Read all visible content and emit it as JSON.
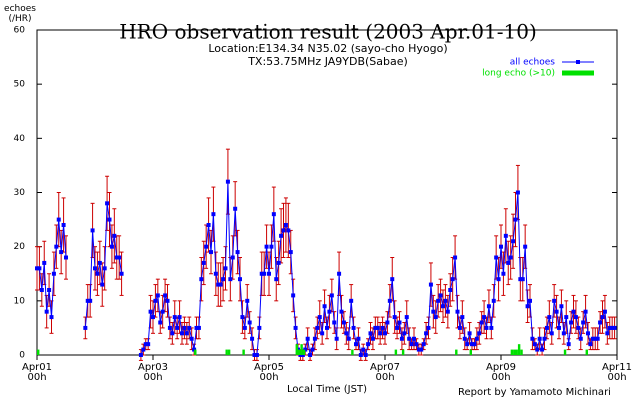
{
  "chart_data": {
    "type": "line",
    "title": "HRO observation result (2003 Apr.01-10)",
    "subtitle": [
      "Location:E134.34 N35.02 (sayo-cho Hyogo)",
      "TX:53.75MHz JA9YDB(Sabae)"
    ],
    "ylabel": "echoes (/HR)",
    "xlabel": "Local Time (JST)",
    "credit": "Report by Yamamoto Michinari",
    "xlim": [
      0,
      240
    ],
    "ylim": [
      0,
      60
    ],
    "xticks": [
      {
        "value": 0,
        "label": "Apr01 00h"
      },
      {
        "value": 48,
        "label": "Apr03 00h"
      },
      {
        "value": 96,
        "label": "Apr05 00h"
      },
      {
        "value": 144,
        "label": "Apr07 00h"
      },
      {
        "value": 192,
        "label": "Apr09 00h"
      },
      {
        "value": 240,
        "label": "Apr11 00h"
      }
    ],
    "yticks": [
      0,
      10,
      20,
      30,
      40,
      50,
      60
    ],
    "legend": "upper right",
    "error_color": "#cc0000",
    "series": [
      {
        "name": "all echoes",
        "color": "#0000ff",
        "x": [
          0,
          1,
          2,
          3,
          4,
          5,
          6,
          7,
          8,
          9,
          10,
          11,
          12,
          13,
          14,
          15,
          16,
          17,
          18,
          19,
          20,
          21,
          22,
          23,
          24,
          25,
          26,
          27,
          28,
          29,
          30,
          31,
          32,
          33,
          34,
          35,
          36,
          37,
          38,
          39,
          40,
          41,
          42,
          43,
          44,
          45,
          46,
          47,
          48,
          49,
          50,
          51,
          52,
          53,
          54,
          55,
          56,
          57,
          58,
          59,
          60,
          61,
          62,
          63,
          64,
          65,
          66,
          67,
          68,
          69,
          70,
          71,
          72,
          73,
          74,
          75,
          76,
          77,
          78,
          79,
          80,
          81,
          82,
          83,
          84,
          85,
          86,
          87,
          88,
          89,
          90,
          91,
          92,
          93,
          94,
          95,
          96,
          97,
          98,
          99,
          100,
          101,
          102,
          103,
          104,
          105,
          106,
          107,
          108,
          109,
          110,
          111,
          112,
          113,
          114,
          115,
          116,
          117,
          118,
          119,
          120,
          121,
          122,
          123,
          124,
          125,
          126,
          127,
          128,
          129,
          130,
          131,
          132,
          133,
          134,
          135,
          136,
          137,
          138,
          139,
          140,
          141,
          142,
          143,
          144,
          145,
          146,
          147,
          148,
          149,
          150,
          151,
          152,
          153,
          154,
          155,
          156,
          157,
          158,
          159,
          160,
          161,
          162,
          163,
          164,
          165,
          166,
          167,
          168,
          169,
          170,
          171,
          172,
          173,
          174,
          175,
          176,
          177,
          178,
          179,
          180,
          181,
          182,
          183,
          184,
          185,
          186,
          187,
          188,
          189,
          190,
          191,
          192,
          193,
          194,
          195,
          196,
          197,
          198,
          199,
          200,
          201,
          202,
          203,
          204,
          205,
          206,
          207,
          208,
          209,
          210,
          211,
          212,
          213,
          214,
          215,
          216,
          217,
          218,
          219,
          220,
          221,
          222,
          223,
          224,
          225,
          226,
          227,
          228,
          229,
          230,
          231,
          232,
          233,
          234,
          235,
          236,
          237,
          238,
          239
        ],
        "values": [
          16,
          16,
          12,
          17,
          8,
          12,
          7,
          15,
          20,
          25,
          19,
          24,
          18,
          null,
          null,
          null,
          null,
          null,
          null,
          null,
          5,
          10,
          10,
          23,
          16,
          15,
          17,
          13,
          16,
          28,
          25,
          20,
          22,
          18,
          18,
          15,
          null,
          null,
          null,
          null,
          null,
          null,
          null,
          0,
          1,
          2,
          2,
          8,
          7,
          10,
          11,
          6,
          8,
          11,
          10,
          5,
          4,
          7,
          5,
          7,
          4,
          5,
          4,
          5,
          3,
          1,
          5,
          5,
          14,
          17,
          20,
          24,
          19,
          26,
          15,
          13,
          13,
          14,
          16,
          32,
          14,
          18,
          27,
          19,
          14,
          7,
          5,
          10,
          6,
          3,
          0,
          0,
          5,
          15,
          15,
          20,
          15,
          20,
          26,
          14,
          17,
          22,
          23,
          24,
          23,
          19,
          11,
          5,
          1,
          0,
          0,
          1,
          3,
          0,
          1,
          3,
          5,
          7,
          4,
          9,
          5,
          8,
          11,
          6,
          3,
          15,
          8,
          6,
          4,
          3,
          10,
          5,
          2,
          3,
          0,
          1,
          0,
          2,
          4,
          3,
          5,
          5,
          4,
          5,
          4,
          6,
          10,
          14,
          7,
          5,
          6,
          3,
          4,
          7,
          3,
          2,
          3,
          2,
          1,
          1,
          2,
          4,
          5,
          13,
          8,
          7,
          10,
          11,
          9,
          10,
          8,
          12,
          14,
          18,
          8,
          5,
          7,
          3,
          2,
          4,
          2,
          2,
          3,
          4,
          6,
          7,
          5,
          9,
          5,
          10,
          18,
          14,
          20,
          15,
          22,
          17,
          18,
          21,
          25,
          30,
          14,
          14,
          20,
          9,
          10,
          3,
          2,
          1,
          3,
          1,
          3,
          5,
          7,
          4,
          10,
          8,
          5,
          9,
          4,
          7,
          2,
          6,
          8,
          7,
          5,
          3,
          6,
          8,
          4,
          2,
          3,
          3,
          3,
          6,
          7,
          8,
          4,
          5,
          5,
          5
        ],
        "errors": [
          4,
          4,
          3,
          4,
          3,
          3,
          3,
          4,
          4,
          5,
          4,
          5,
          4,
          null,
          null,
          null,
          null,
          null,
          null,
          null,
          2,
          3,
          3,
          5,
          4,
          4,
          4,
          4,
          4,
          5,
          5,
          4,
          5,
          4,
          4,
          4,
          null,
          null,
          null,
          null,
          null,
          null,
          null,
          1,
          1,
          1,
          1,
          3,
          3,
          3,
          3,
          2,
          3,
          3,
          3,
          2,
          2,
          3,
          2,
          3,
          2,
          2,
          2,
          2,
          2,
          1,
          2,
          2,
          4,
          4,
          4,
          5,
          4,
          5,
          4,
          4,
          4,
          4,
          4,
          6,
          4,
          4,
          5,
          4,
          4,
          3,
          2,
          3,
          2,
          2,
          1,
          1,
          2,
          4,
          4,
          4,
          4,
          4,
          5,
          4,
          4,
          5,
          5,
          5,
          5,
          4,
          3,
          2,
          1,
          1,
          1,
          1,
          2,
          1,
          1,
          2,
          2,
          3,
          2,
          3,
          2,
          3,
          3,
          2,
          2,
          4,
          3,
          2,
          2,
          2,
          3,
          2,
          1,
          2,
          1,
          1,
          1,
          1,
          2,
          2,
          2,
          2,
          2,
          2,
          2,
          2,
          3,
          4,
          3,
          2,
          2,
          2,
          2,
          3,
          2,
          1,
          2,
          1,
          1,
          1,
          1,
          2,
          2,
          4,
          3,
          3,
          3,
          3,
          3,
          3,
          3,
          3,
          4,
          4,
          3,
          2,
          3,
          2,
          1,
          2,
          1,
          1,
          2,
          2,
          2,
          3,
          2,
          3,
          2,
          3,
          4,
          4,
          4,
          4,
          5,
          4,
          4,
          5,
          5,
          5,
          4,
          4,
          4,
          3,
          3,
          2,
          1,
          1,
          2,
          1,
          2,
          2,
          3,
          2,
          3,
          3,
          2,
          3,
          2,
          3,
          1,
          2,
          3,
          3,
          2,
          2,
          2,
          3,
          2,
          1,
          2,
          2,
          2,
          2,
          3,
          3,
          2,
          2,
          2,
          2
        ]
      },
      {
        "name": "long echo (>10)",
        "color": "#00e000",
        "x": [
          0,
          65,
          78,
          79,
          85,
          107,
          108,
          109,
          110,
          130,
          148,
          151,
          173,
          179,
          196,
          197,
          198,
          199,
          200,
          218,
          227
        ],
        "values": [
          1,
          1,
          1,
          1,
          1,
          2,
          1,
          2,
          1,
          1,
          1,
          1,
          1,
          1,
          1,
          1,
          1,
          2,
          1,
          1,
          1
        ]
      }
    ]
  }
}
